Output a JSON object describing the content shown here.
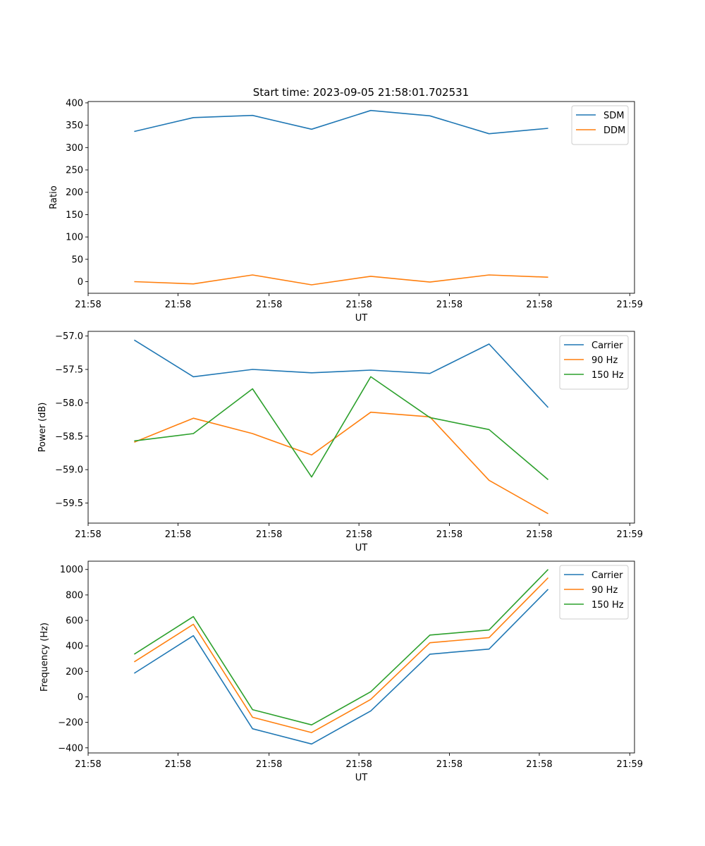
{
  "figure": {
    "title": "Start time: 2023-09-05 21:58:01.702531"
  },
  "colors": {
    "blue": "#1f77b4",
    "orange": "#ff7f0e",
    "green": "#2ca02c"
  },
  "chart_data": [
    {
      "type": "line",
      "title": "Start time: 2023-09-05 21:58:01.702531",
      "xlabel": "UT",
      "ylabel": "Ratio",
      "x": [
        1,
        2,
        3,
        4,
        5,
        6,
        7,
        8
      ],
      "xlim": [
        0.22,
        9.46
      ],
      "xticks": [
        0.22,
        1.74,
        3.28,
        4.8,
        6.33,
        7.85,
        9.38
      ],
      "xtick_labels": [
        "21:58",
        "21:58",
        "21:58",
        "21:58",
        "21:58",
        "21:58",
        "21:59"
      ],
      "ylim": [
        -26,
        403
      ],
      "yticks": [
        0,
        50,
        100,
        150,
        200,
        250,
        300,
        350,
        400
      ],
      "ytick_labels": [
        "0",
        "50",
        "100",
        "150",
        "200",
        "250",
        "300",
        "350",
        "400"
      ],
      "legend": "top-right",
      "grid": false,
      "series": [
        {
          "name": "SDM",
          "color": "#1f77b4",
          "values": [
            336,
            367,
            372,
            341,
            383,
            371,
            331,
            343
          ]
        },
        {
          "name": "DDM",
          "color": "#ff7f0e",
          "values": [
            0,
            -5,
            15,
            -7,
            12,
            -1,
            15,
            10
          ]
        }
      ]
    },
    {
      "type": "line",
      "title": "",
      "xlabel": "UT",
      "ylabel": "Power (dB)",
      "x": [
        1,
        2,
        3,
        4,
        5,
        6,
        7,
        8
      ],
      "xlim": [
        0.22,
        9.46
      ],
      "xticks": [
        0.22,
        1.74,
        3.28,
        4.8,
        6.33,
        7.85,
        9.38
      ],
      "xtick_labels": [
        "21:58",
        "21:58",
        "21:58",
        "21:58",
        "21:58",
        "21:58",
        "21:59"
      ],
      "ylim": [
        -59.8,
        -56.93
      ],
      "yticks": [
        -59.5,
        -59.0,
        -58.5,
        -58.0,
        -57.5,
        -57.0
      ],
      "ytick_labels": [
        "−59.5",
        "−59.0",
        "−58.5",
        "−58.0",
        "−57.5",
        "−57.0"
      ],
      "legend": "top-right",
      "grid": false,
      "series": [
        {
          "name": "Carrier",
          "color": "#1f77b4",
          "values": [
            -57.06,
            -57.61,
            -57.5,
            -57.55,
            -57.51,
            -57.56,
            -57.12,
            -58.07
          ]
        },
        {
          "name": "90 Hz",
          "color": "#ff7f0e",
          "values": [
            -58.59,
            -58.23,
            -58.46,
            -58.78,
            -58.14,
            -58.21,
            -59.16,
            -59.66
          ]
        },
        {
          "name": "150 Hz",
          "color": "#2ca02c",
          "values": [
            -58.57,
            -58.46,
            -57.79,
            -59.11,
            -57.61,
            -58.22,
            -58.4,
            -59.15
          ]
        }
      ]
    },
    {
      "type": "line",
      "title": "",
      "xlabel": "UT",
      "ylabel": "Frequency (Hz)",
      "x": [
        1,
        2,
        3,
        4,
        5,
        6,
        7,
        8
      ],
      "xlim": [
        0.22,
        9.46
      ],
      "xticks": [
        0.22,
        1.74,
        3.28,
        4.8,
        6.33,
        7.85,
        9.38
      ],
      "xtick_labels": [
        "21:58",
        "21:58",
        "21:58",
        "21:58",
        "21:58",
        "21:58",
        "21:59"
      ],
      "ylim": [
        -440,
        1065
      ],
      "yticks": [
        -400,
        -200,
        0,
        200,
        400,
        600,
        800,
        1000
      ],
      "ytick_labels": [
        "−400",
        "−200",
        "0",
        "200",
        "400",
        "600",
        "800",
        "1000"
      ],
      "legend": "top-right",
      "grid": false,
      "series": [
        {
          "name": "Carrier",
          "color": "#1f77b4",
          "values": [
            185,
            480,
            -250,
            -370,
            -110,
            335,
            375,
            845
          ]
        },
        {
          "name": "90 Hz",
          "color": "#ff7f0e",
          "values": [
            275,
            570,
            -160,
            -280,
            -20,
            425,
            465,
            935
          ]
        },
        {
          "name": "150 Hz",
          "color": "#2ca02c",
          "values": [
            335,
            630,
            -100,
            -220,
            40,
            485,
            525,
            1000
          ]
        }
      ]
    }
  ]
}
